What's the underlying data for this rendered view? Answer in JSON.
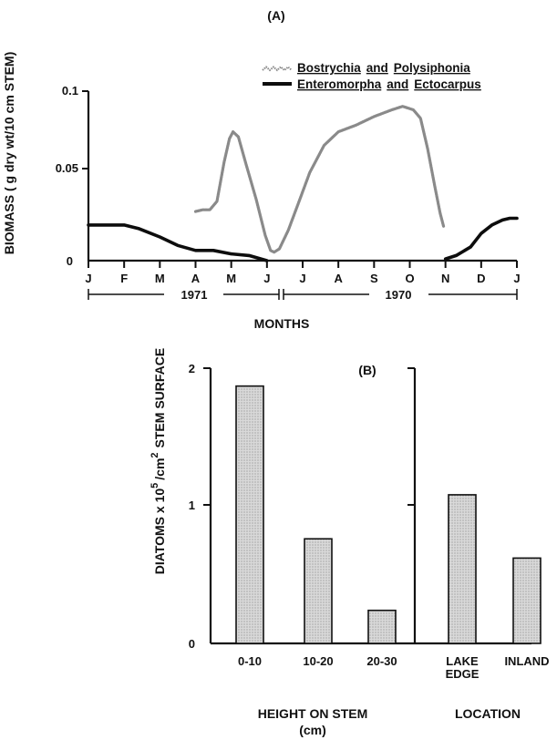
{
  "chart_data": [
    {
      "type": "line",
      "panel_label": "(A)",
      "ylabel": "BIOMASS ( g dry wt/10 cm STEM)",
      "xlabel": "MONTHS",
      "x_ticks": [
        "J",
        "F",
        "M",
        "A",
        "M",
        "J",
        "J",
        "A",
        "S",
        "O",
        "N",
        "D",
        "J"
      ],
      "y_ticks": [
        "0",
        "0.05",
        "0.1"
      ],
      "ylim": [
        0,
        0.1
      ],
      "year_labels": [
        "1971",
        "1970"
      ],
      "legend": {
        "placement": "top-right",
        "entries": [
          {
            "prefix": "",
            "name1": "Bostrychia",
            "mid": "and",
            "name2": "Polysiphonia"
          },
          {
            "prefix": "",
            "name1": "Enteromorpha",
            "mid": "and",
            "name2": "Ectocarpus"
          }
        ]
      },
      "series": [
        {
          "name": "Bostrychia and Polysiphonia",
          "style": "dotted-thick",
          "color": "#8a8a8a",
          "segments": [
            [
              [
                3.0,
                0.029
              ],
              [
                3.2,
                0.03
              ],
              [
                3.4,
                0.03
              ],
              [
                3.6,
                0.035
              ],
              [
                3.8,
                0.058
              ],
              [
                3.95,
                0.072
              ],
              [
                4.05,
                0.076
              ],
              [
                4.2,
                0.073
              ],
              [
                4.4,
                0.058
              ],
              [
                4.7,
                0.036
              ],
              [
                4.95,
                0.015
              ],
              [
                5.1,
                0.006
              ],
              [
                5.2,
                0.005
              ],
              [
                5.35,
                0.007
              ],
              [
                5.6,
                0.018
              ],
              [
                5.9,
                0.035
              ],
              [
                6.2,
                0.052
              ],
              [
                6.6,
                0.068
              ],
              [
                7.0,
                0.076
              ],
              [
                7.5,
                0.08
              ],
              [
                8.0,
                0.085
              ],
              [
                8.5,
                0.089
              ],
              [
                8.8,
                0.091
              ],
              [
                9.1,
                0.089
              ],
              [
                9.3,
                0.084
              ],
              [
                9.5,
                0.066
              ],
              [
                9.7,
                0.044
              ],
              [
                9.85,
                0.028
              ],
              [
                9.95,
                0.02
              ]
            ]
          ]
        },
        {
          "name": "Enteromorpha and Ectocarpus",
          "style": "solid-thick",
          "color": "#0d0d0d",
          "segments": [
            [
              [
                0,
                0.021
              ],
              [
                0.5,
                0.021
              ],
              [
                1.0,
                0.021
              ],
              [
                1.4,
                0.019
              ],
              [
                2.0,
                0.014
              ],
              [
                2.5,
                0.009
              ],
              [
                3.0,
                0.006
              ],
              [
                3.5,
                0.006
              ],
              [
                4.0,
                0.004
              ],
              [
                4.5,
                0.003
              ],
              [
                5.0,
                0.0
              ]
            ],
            [
              [
                10.0,
                0.001
              ],
              [
                10.3,
                0.003
              ],
              [
                10.7,
                0.008
              ],
              [
                11.0,
                0.016
              ],
              [
                11.3,
                0.021
              ],
              [
                11.6,
                0.024
              ],
              [
                11.8,
                0.025
              ],
              [
                12.0,
                0.025
              ]
            ]
          ]
        }
      ]
    },
    {
      "type": "bar",
      "panel_label": "(B)",
      "ylabel": "DIATOMS x 10⁵ /cm² STEM SURFACE",
      "ylabel_main": "DIATOMS x 10",
      "ylabel_exp": "5",
      "ylabel_mid": "/cm",
      "ylabel_exp2": "2",
      "ylabel_tail": "STEM SURFACE",
      "y_ticks": [
        "0",
        "1",
        "2"
      ],
      "ylim": [
        0,
        2
      ],
      "bar_fill": "#cfcfcf",
      "groups": [
        {
          "xlabel": "HEIGHT ON STEM",
          "xlabel_sub": "(cm)",
          "categories": [
            "0-10",
            "10-20",
            "20-30"
          ],
          "values": [
            1.87,
            0.76,
            0.24
          ]
        },
        {
          "xlabel": "LOCATION",
          "categories": [
            "LAKE EDGE",
            "INLAND"
          ],
          "category_lines": [
            [
              "LAKE",
              "EDGE"
            ],
            [
              "INLAND"
            ]
          ],
          "values": [
            1.08,
            0.62
          ]
        }
      ]
    }
  ]
}
